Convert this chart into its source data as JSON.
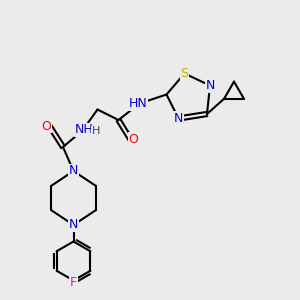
{
  "bg_color": "#ebebeb",
  "bond_color": "#000000",
  "bond_lw": 1.5,
  "atom_colors": {
    "N": "#0000cc",
    "O": "#ff0000",
    "S": "#ccaa00",
    "F": "#ff00ff",
    "C": "#000000",
    "H": "#444444"
  },
  "font_size": 9,
  "font_size_small": 8
}
